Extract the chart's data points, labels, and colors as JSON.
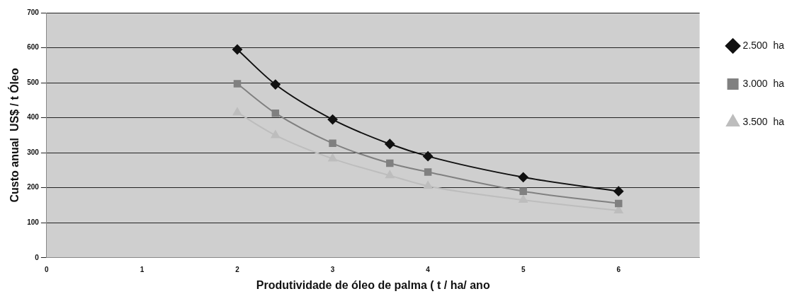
{
  "chart_data": {
    "type": "line",
    "xlabel": "Produtividade de óleo de palma ( t / ha/ ano",
    "ylabel": "Custo anual  US$ / t Óleo",
    "xlim": [
      0,
      6.85
    ],
    "xticks": [
      0,
      1,
      2,
      3,
      4,
      5,
      6
    ],
    "ylim": [
      0,
      700
    ],
    "yticks": [
      0,
      100,
      200,
      300,
      400,
      500,
      600,
      700
    ],
    "grid": "y",
    "legend": "top right",
    "series": [
      {
        "name": "2.500  ha",
        "color": "#111111",
        "marker": "diamond",
        "x": [
          2,
          2.4,
          3,
          3.6,
          4,
          5,
          6
        ],
        "values": [
          595,
          495,
          395,
          325,
          290,
          230,
          190
        ]
      },
      {
        "name": "3.000  ha",
        "color": "#808080",
        "marker": "square",
        "x": [
          2,
          2.4,
          3,
          3.6,
          4,
          5,
          6
        ],
        "values": [
          497,
          413,
          327,
          270,
          245,
          190,
          155
        ]
      },
      {
        "name": "3.500  ha",
        "color": "#bdbdbd",
        "marker": "triangle",
        "x": [
          2,
          2.4,
          3,
          3.6,
          4,
          5,
          6
        ],
        "values": [
          415,
          350,
          283,
          235,
          205,
          165,
          135
        ]
      }
    ]
  }
}
